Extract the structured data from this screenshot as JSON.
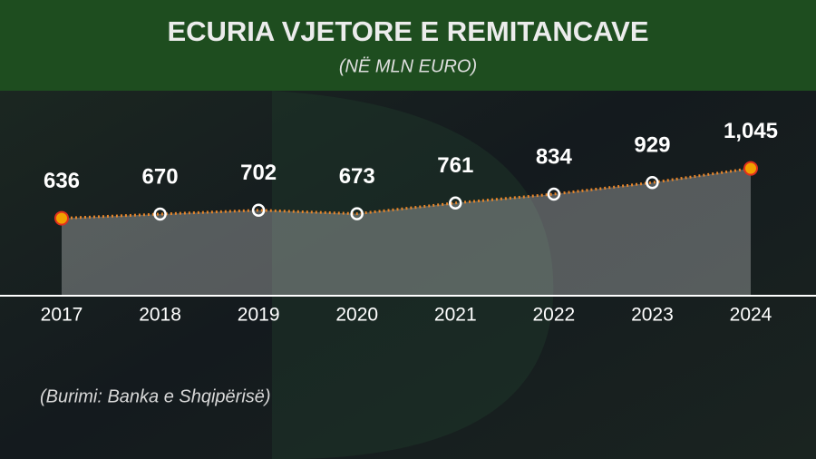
{
  "chart_data": {
    "type": "line",
    "title": "ECURIA VJETORE E REMITANCAVE",
    "subtitle": "(NË MLN EURO)",
    "source": "(Burimi: Banka e Shqipërisë)",
    "categories": [
      "2017",
      "2018",
      "2019",
      "2020",
      "2021",
      "2022",
      "2023",
      "2024"
    ],
    "values": [
      636,
      670,
      702,
      673,
      761,
      834,
      929,
      1045
    ],
    "value_labels": [
      "636",
      "670",
      "702",
      "673",
      "761",
      "834",
      "929",
      "1,045"
    ],
    "color": "#e8862a",
    "ylim": [
      0,
      1400
    ]
  }
}
